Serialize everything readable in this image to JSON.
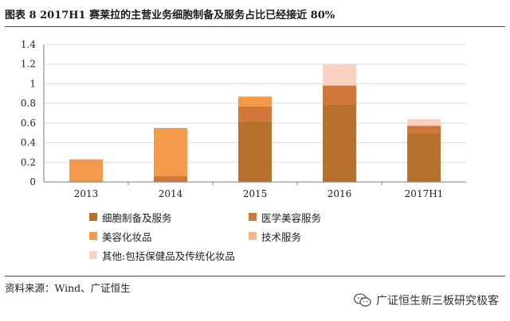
{
  "title": "图表 8 2017H1 赛莱拉的主营业务细胞制备及服务占比已经接近 80%",
  "source": "资料来源：Wind、广证恒生",
  "watermark": "广证恒生新三板研究极客",
  "colors": {
    "rule": "#8a2a1a",
    "axis": "#7f7f7f",
    "grid": "#d9d9d9"
  },
  "chart_data": {
    "type": "bar",
    "stacked": true,
    "categories": [
      "2013",
      "2014",
      "2015",
      "2016",
      "2017H1"
    ],
    "ylim": [
      0,
      1.4
    ],
    "yticks": [
      "0",
      "0.2",
      "0.4",
      "0.6",
      "0.8",
      "1",
      "1.2",
      "1.4"
    ],
    "grid": true,
    "legend_position": "bottom",
    "series": [
      {
        "name": "细胞制备及服务",
        "color": "#B8702F",
        "values": [
          0,
          0,
          0.62,
          0.79,
          0.5
        ]
      },
      {
        "name": "医学美容服务",
        "color": "#D0773A",
        "values": [
          0,
          0.06,
          0.15,
          0.19,
          0.07
        ]
      },
      {
        "name": "美容化妆品",
        "color": "#F39A4B",
        "values": [
          0.23,
          0.49,
          0.1,
          0,
          0
        ]
      },
      {
        "name": "技术服务",
        "color": "#F7B78A",
        "values": [
          0,
          0,
          0,
          0.01,
          0.01
        ]
      },
      {
        "name": "其他:包括保健品及传统化妆品",
        "color": "#FAD1C2",
        "values": [
          0,
          0,
          0,
          0.21,
          0.06
        ]
      }
    ]
  }
}
